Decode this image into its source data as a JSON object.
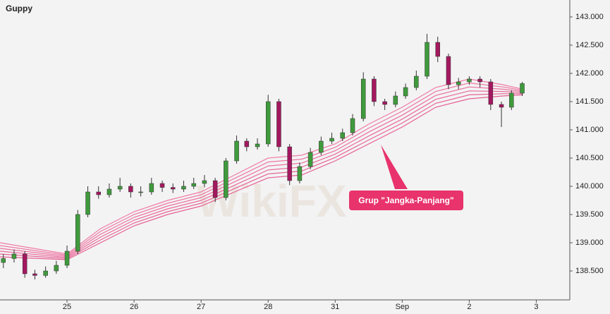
{
  "chart_data": {
    "type": "candlestick",
    "title": "Guppy",
    "annotation": "Grup \"Jangka-Panjang\"",
    "watermark": "WikiFX",
    "up_color": "#3f9a3c",
    "down_color": "#a3185f",
    "x": [
      0.05,
      0.21,
      0.37,
      0.52,
      0.68,
      0.84,
      1.0,
      1.16,
      1.31,
      1.47,
      1.63,
      1.79,
      1.95,
      2.1,
      2.26,
      2.42,
      2.58,
      2.74,
      2.89,
      3.05,
      3.21,
      3.37,
      3.53,
      3.68,
      3.84,
      4.0,
      4.16,
      4.32,
      4.47,
      4.63,
      4.79,
      4.95,
      5.11,
      5.26,
      5.42,
      5.58,
      5.74,
      5.9,
      6.05,
      6.21,
      6.37,
      6.53,
      6.69,
      6.84,
      7.0,
      7.16,
      7.32,
      7.48,
      7.63,
      7.79
    ],
    "open": [
      138.65,
      138.72,
      138.8,
      138.45,
      138.42,
      138.5,
      138.6,
      138.85,
      139.5,
      139.9,
      139.85,
      139.95,
      140.0,
      139.9,
      139.9,
      140.05,
      139.98,
      139.95,
      140.0,
      140.05,
      140.1,
      139.8,
      140.45,
      140.8,
      140.7,
      140.75,
      141.5,
      140.7,
      140.1,
      140.35,
      140.6,
      140.8,
      140.85,
      140.95,
      141.2,
      141.9,
      141.5,
      141.45,
      141.6,
      141.75,
      141.95,
      142.55,
      142.3,
      141.8,
      141.85,
      141.9,
      141.85,
      141.45,
      141.4,
      141.65
    ],
    "high": [
      138.8,
      138.88,
      138.85,
      138.52,
      138.58,
      138.68,
      138.95,
      139.58,
      140.0,
      140.0,
      140.05,
      140.15,
      140.05,
      140.0,
      140.15,
      140.1,
      140.05,
      140.1,
      140.15,
      140.2,
      140.15,
      140.5,
      140.9,
      140.85,
      140.85,
      141.62,
      141.55,
      140.75,
      140.42,
      140.68,
      140.88,
      140.95,
      141.02,
      141.28,
      142.02,
      141.95,
      141.55,
      141.68,
      141.82,
      142.05,
      142.7,
      142.65,
      142.35,
      141.92,
      141.95,
      141.95,
      141.9,
      141.5,
      141.7,
      141.85
    ],
    "low": [
      138.55,
      138.65,
      138.38,
      138.35,
      138.38,
      138.45,
      138.55,
      138.8,
      139.45,
      139.78,
      139.8,
      139.9,
      139.8,
      139.82,
      139.85,
      139.9,
      139.88,
      139.9,
      139.95,
      139.98,
      139.72,
      139.75,
      140.4,
      140.62,
      140.65,
      140.7,
      140.62,
      140.02,
      140.05,
      140.3,
      140.55,
      140.75,
      140.8,
      140.9,
      141.15,
      141.42,
      141.35,
      141.4,
      141.55,
      141.7,
      141.9,
      142.2,
      141.72,
      141.72,
      141.8,
      141.75,
      141.35,
      141.05,
      141.35,
      141.6
    ],
    "close": [
      138.72,
      138.8,
      138.45,
      138.42,
      138.5,
      138.6,
      138.85,
      139.5,
      139.9,
      139.85,
      139.95,
      140.0,
      139.9,
      139.9,
      140.05,
      139.98,
      139.95,
      140.0,
      140.05,
      140.1,
      139.8,
      140.45,
      140.8,
      140.7,
      140.75,
      141.5,
      140.7,
      140.1,
      140.35,
      140.6,
      140.8,
      140.85,
      140.95,
      141.2,
      141.9,
      141.5,
      141.45,
      141.6,
      141.75,
      141.95,
      142.55,
      142.3,
      141.8,
      141.85,
      141.9,
      141.85,
      141.45,
      141.4,
      141.65,
      141.82
    ],
    "series": [
      {
        "color": "#f07aa6",
        "x": [
          0,
          1,
          1.5,
          2,
          2.5,
          3,
          3.5,
          4,
          4.5,
          5,
          5.5,
          6,
          6.5,
          7,
          7.5,
          7.8
        ],
        "values": [
          139.0,
          138.8,
          139.25,
          139.55,
          139.75,
          139.9,
          140.2,
          140.5,
          140.55,
          140.75,
          141.1,
          141.4,
          141.75,
          141.9,
          141.8,
          141.72
        ]
      },
      {
        "color": "#ee76a2",
        "x": [
          0,
          1,
          1.5,
          2,
          2.5,
          3,
          3.5,
          4,
          4.5,
          5,
          5.5,
          6,
          6.5,
          7,
          7.5,
          7.8
        ],
        "values": [
          138.95,
          138.78,
          139.2,
          139.5,
          139.7,
          139.85,
          140.14,
          140.43,
          140.48,
          140.69,
          141.03,
          141.33,
          141.68,
          141.83,
          141.76,
          141.7
        ]
      },
      {
        "color": "#ec709e",
        "x": [
          0,
          1,
          1.5,
          2,
          2.5,
          3,
          3.5,
          4,
          4.5,
          5,
          5.5,
          6,
          6.5,
          7,
          7.5,
          7.8
        ],
        "values": [
          138.9,
          138.76,
          139.15,
          139.45,
          139.65,
          139.8,
          140.08,
          140.36,
          140.41,
          140.63,
          140.96,
          141.26,
          141.61,
          141.76,
          141.72,
          141.68
        ]
      },
      {
        "color": "#ea6a9a",
        "x": [
          0,
          1,
          1.5,
          2,
          2.5,
          3,
          3.5,
          4,
          4.5,
          5,
          5.5,
          6,
          6.5,
          7,
          7.5,
          7.8
        ],
        "values": [
          138.85,
          138.74,
          139.1,
          139.4,
          139.6,
          139.75,
          140.02,
          140.29,
          140.34,
          140.57,
          140.89,
          141.19,
          141.54,
          141.69,
          141.68,
          141.66
        ]
      },
      {
        "color": "#e86496",
        "x": [
          0,
          1,
          1.5,
          2,
          2.5,
          3,
          3.5,
          4,
          4.5,
          5,
          5.5,
          6,
          6.5,
          7,
          7.5,
          7.8
        ],
        "values": [
          138.8,
          138.72,
          139.05,
          139.35,
          139.55,
          139.7,
          139.96,
          140.22,
          140.27,
          140.51,
          140.82,
          141.12,
          141.47,
          141.62,
          141.64,
          141.64
        ]
      },
      {
        "color": "#e65e92",
        "x": [
          0,
          1,
          1.5,
          2,
          2.5,
          3,
          3.5,
          4,
          4.5,
          5,
          5.5,
          6,
          6.5,
          7,
          7.5,
          7.8
        ],
        "values": [
          138.75,
          138.7,
          139.0,
          139.3,
          139.5,
          139.65,
          139.9,
          140.15,
          140.2,
          140.45,
          140.75,
          141.05,
          141.4,
          141.55,
          141.6,
          141.62
        ]
      }
    ],
    "xlim": [
      0,
      8.5
    ],
    "xticks": [
      {
        "value": 1,
        "label": "25"
      },
      {
        "value": 2,
        "label": "26"
      },
      {
        "value": 3,
        "label": "27"
      },
      {
        "value": 4,
        "label": "28"
      },
      {
        "value": 5,
        "label": "31"
      },
      {
        "value": 6,
        "label": "Sep"
      },
      {
        "value": 7,
        "label": "2"
      },
      {
        "value": 8,
        "label": "3"
      }
    ],
    "ylim": [
      137.9875,
      143.3
    ],
    "yticks": [
      {
        "value": 138.5,
        "label": "138.500"
      },
      {
        "value": 139,
        "label": "139.000"
      },
      {
        "value": 139.5,
        "label": "139.500"
      },
      {
        "value": 140,
        "label": "140.000"
      },
      {
        "value": 140.5,
        "label": "140.500"
      },
      {
        "value": 141,
        "label": "141.000"
      },
      {
        "value": 141.5,
        "label": "141.500"
      },
      {
        "value": 142,
        "label": "142.000"
      },
      {
        "value": 142.5,
        "label": "142.500"
      },
      {
        "value": 143,
        "label": "143.000"
      }
    ]
  }
}
